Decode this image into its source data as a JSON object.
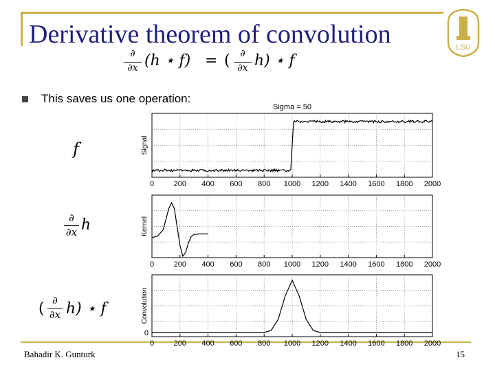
{
  "slide": {
    "title": "Derivative theorem of convolution",
    "bullet": "This saves us one operation:",
    "author": "Bahadir K. Gunturk",
    "page_number": "15",
    "logo_text": "LSU"
  },
  "equation": {
    "lhs_op": "∂",
    "lhs_den": "∂x",
    "lhs_expr": "(h ⋆ f)",
    "equals": "=",
    "rhs_open": "(",
    "rhs_op": "∂",
    "rhs_den": "∂x",
    "rhs_expr": "h) ⋆ f"
  },
  "row_labels": {
    "f": "f",
    "kernel_num": "∂",
    "kernel_den": "∂x",
    "kernel_h": "h",
    "conv_open": "(",
    "conv_num": "∂",
    "conv_den": "∂x",
    "conv_rest": "h) ⋆ f"
  },
  "chart_data": [
    {
      "type": "line",
      "title": "Sigma = 50",
      "ylabel": "Signal",
      "xlim": [
        0,
        2000
      ],
      "xticks": [
        "0",
        "200",
        "400",
        "600",
        "800",
        "1000",
        "1200",
        "1400",
        "1600",
        "1800",
        "2000"
      ],
      "grid": true,
      "series": [
        {
          "x": [
            0,
            990,
            1010,
            2000
          ],
          "y": [
            0.05,
            0.05,
            0.95,
            0.95
          ]
        }
      ]
    },
    {
      "type": "line",
      "ylabel": "Kernel",
      "xlim": [
        0,
        2000
      ],
      "xticks": [
        "0",
        "200",
        "400",
        "600",
        "800",
        "1000",
        "1200",
        "1400",
        "1600",
        "1800",
        "2000"
      ],
      "grid": true,
      "series": [
        {
          "x": [
            0,
            40,
            80,
            120,
            140,
            160,
            180,
            200,
            220,
            240,
            260,
            280,
            300,
            340,
            400
          ],
          "y": [
            0.3,
            0.33,
            0.45,
            0.85,
            0.96,
            0.85,
            0.5,
            0.15,
            -0.05,
            0.02,
            0.2,
            0.32,
            0.36,
            0.37,
            0.37
          ]
        }
      ]
    },
    {
      "type": "line",
      "ylabel": "Convolution",
      "xlim": [
        0,
        2000
      ],
      "xticks": [
        "0",
        "200",
        "400",
        "600",
        "800",
        "1000",
        "1200",
        "1400",
        "1600",
        "1800",
        "2000"
      ],
      "yticks": [
        "0"
      ],
      "grid": true,
      "series": [
        {
          "x": [
            0,
            800,
            850,
            900,
            950,
            1000,
            1050,
            1100,
            1150,
            1200,
            2000
          ],
          "y": [
            0,
            0,
            0.04,
            0.25,
            0.7,
            1.0,
            0.7,
            0.25,
            0.04,
            0,
            0
          ]
        }
      ]
    }
  ]
}
